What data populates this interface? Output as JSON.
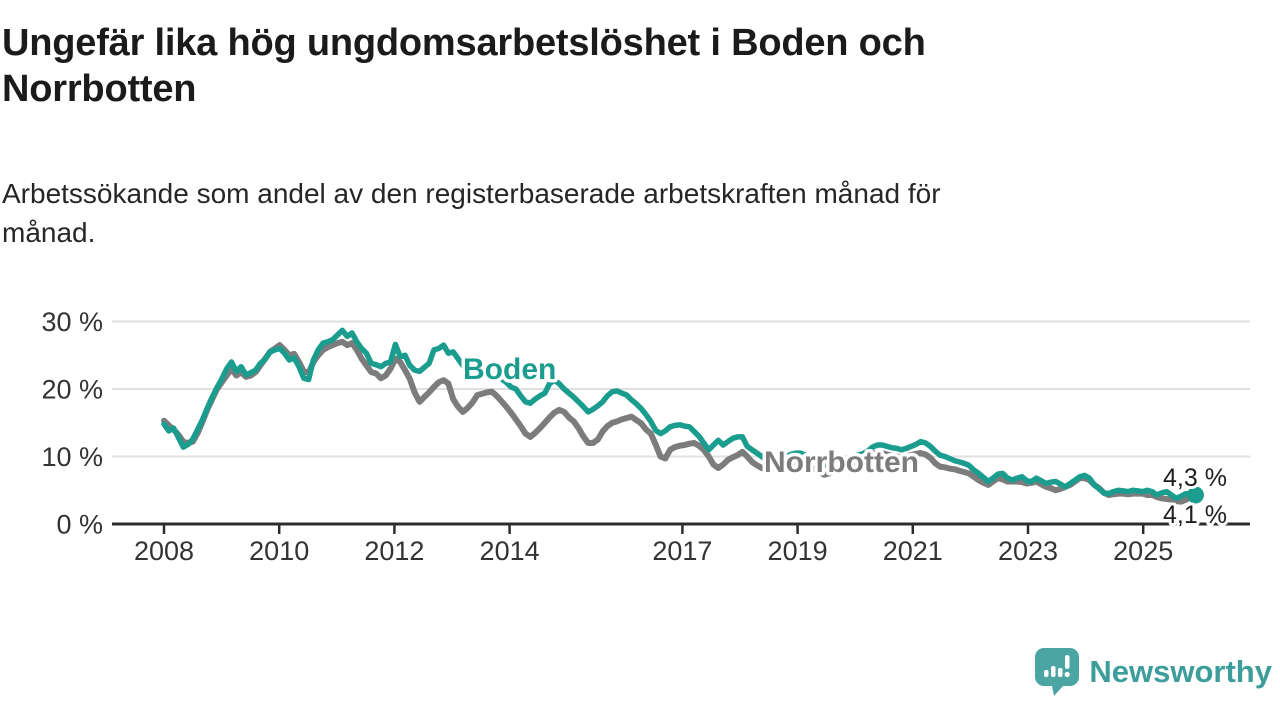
{
  "header": {
    "title": "Ungefär lika hög ungdomsarbetslöshet i Boden och\nNorrbotten",
    "subtitle": "Arbetssökande som andel av den registerbaserade arbetskraften månad för\nmånad."
  },
  "branding": {
    "name": "Newsworthy",
    "icon": "newsworthy-speech-bubble-chart-icon",
    "icon_color": "#4ba5a2",
    "text_color": "#3c9d9b"
  },
  "colors": {
    "boden": "#1a9d8f",
    "norrbotten": "#7c7c7c",
    "axis": "#2d2d2d",
    "grid": "#e0e0e0",
    "tick_text": "#333333",
    "value_text": "#1f1f1f"
  },
  "chart_data": {
    "type": "line",
    "title": "Ungefär lika hög ungdomsarbetslöshet i Boden och Norrbotten",
    "subtitle": "Arbetssökande som andel av den registerbaserade arbetskraften månad för månad.",
    "unit": "%",
    "frequency": "monthly",
    "x_start": "2008-01",
    "x_end": "2025-11",
    "x_tick_labels": [
      "2008",
      "2010",
      "2012",
      "2014",
      "2017",
      "2019",
      "2021",
      "2023",
      "2025"
    ],
    "y_tick_labels": [
      "30 %",
      "20 %",
      "10 %",
      "0 %"
    ],
    "y_tick_values": [
      30,
      20,
      10,
      0
    ],
    "ylim": [
      0,
      31
    ],
    "grid": "horizontal",
    "legend": "inline-labels",
    "series": [
      {
        "name": "Norrbotten",
        "color": "#7c7c7c",
        "end_label": "4,1 %",
        "last_value": 4.1,
        "end_dot": false,
        "values": [
          15.3,
          14.6,
          14.0,
          13.2,
          12.2,
          12.0,
          12.2,
          13.5,
          15.2,
          17.0,
          18.5,
          20.0,
          21.0,
          22.0,
          23.0,
          22.0,
          22.5,
          21.8,
          22.0,
          22.5,
          23.5,
          24.5,
          25.5,
          26.0,
          26.5,
          25.8,
          25.0,
          25.2,
          24.0,
          22.6,
          22.4,
          24.0,
          25.0,
          25.8,
          26.2,
          26.5,
          26.8,
          27.0,
          26.5,
          26.8,
          25.8,
          24.5,
          23.5,
          22.5,
          22.3,
          21.6,
          22.0,
          23.0,
          24.5,
          24.0,
          22.8,
          21.5,
          19.5,
          18.1,
          18.8,
          19.5,
          20.3,
          21.0,
          21.3,
          20.8,
          18.5,
          17.4,
          16.6,
          17.2,
          18.0,
          19.1,
          19.3,
          19.5,
          19.6,
          19.0,
          18.2,
          17.4,
          16.5,
          15.5,
          14.5,
          13.4,
          12.9,
          13.5,
          14.2,
          15.0,
          15.8,
          16.5,
          16.9,
          16.6,
          15.8,
          15.2,
          14.2,
          13.0,
          12.0,
          12.0,
          12.5,
          13.7,
          14.5,
          15.0,
          15.2,
          15.5,
          15.7,
          15.9,
          15.4,
          14.9,
          14.0,
          13.4,
          11.8,
          10.0,
          9.7,
          11.0,
          11.4,
          11.6,
          11.7,
          11.9,
          12.0,
          11.6,
          11.0,
          10.0,
          8.8,
          8.3,
          8.8,
          9.5,
          9.9,
          10.2,
          10.7,
          10.0,
          9.2,
          8.7,
          8.3,
          8.0,
          8.2,
          8.4,
          8.5,
          8.7,
          8.9,
          9.0,
          9.0,
          8.8,
          8.5,
          8.1,
          7.7,
          7.3,
          7.5,
          7.7,
          7.9,
          8.1,
          8.3,
          8.6,
          8.9,
          9.2,
          9.8,
          10.4,
          10.6,
          10.5,
          10.3,
          10.1,
          10.0,
          9.9,
          10.0,
          10.2,
          10.4,
          10.5,
          10.3,
          9.8,
          9.0,
          8.5,
          8.4,
          8.2,
          8.1,
          7.9,
          7.7,
          7.5,
          7.0,
          6.5,
          6.1,
          5.8,
          6.3,
          6.8,
          6.6,
          6.3,
          6.3,
          6.3,
          6.2,
          6.0,
          6.1,
          6.3,
          5.9,
          5.5,
          5.3,
          5.0,
          5.2,
          5.5,
          5.8,
          6.3,
          6.8,
          6.8,
          6.5,
          5.8,
          5.3,
          4.6,
          4.3,
          4.4,
          4.5,
          4.5,
          4.4,
          4.5,
          4.5,
          4.5,
          4.3,
          4.3,
          4.0,
          3.8,
          3.7,
          3.6,
          3.4,
          3.3,
          3.6,
          4.0,
          4.1
        ]
      },
      {
        "name": "Boden",
        "color": "#1a9d8f",
        "end_label": "4,3 %",
        "last_value": 4.3,
        "end_dot": true,
        "values": [
          14.8,
          13.8,
          14.2,
          12.8,
          11.4,
          11.8,
          12.6,
          14.0,
          15.5,
          17.2,
          18.8,
          20.2,
          21.5,
          23.0,
          24.0,
          22.6,
          23.3,
          22.1,
          22.4,
          22.8,
          23.8,
          24.4,
          25.5,
          25.8,
          26.0,
          25.3,
          24.3,
          24.6,
          23.3,
          21.6,
          21.4,
          24.3,
          25.8,
          26.8,
          27.0,
          27.3,
          28.0,
          28.7,
          27.8,
          28.3,
          27.0,
          26.0,
          25.3,
          23.8,
          23.6,
          23.3,
          23.8,
          24.0,
          26.6,
          24.8,
          25.0,
          23.5,
          22.8,
          22.6,
          23.2,
          23.8,
          25.8,
          26.0,
          26.5,
          25.3,
          25.5,
          24.5,
          23.5,
          22.5,
          21.8,
          21.5,
          21.8,
          22.0,
          22.3,
          22.0,
          21.5,
          21.0,
          20.3,
          20.0,
          19.0,
          18.1,
          17.9,
          18.5,
          19.0,
          19.4,
          20.8,
          21.3,
          20.8,
          20.0,
          19.4,
          18.8,
          18.1,
          17.4,
          16.6,
          17.0,
          17.5,
          18.1,
          19.0,
          19.6,
          19.7,
          19.4,
          19.1,
          18.4,
          17.8,
          17.1,
          16.2,
          15.2,
          13.9,
          13.4,
          13.8,
          14.4,
          14.6,
          14.7,
          14.5,
          14.4,
          13.7,
          13.0,
          12.0,
          11.0,
          11.7,
          12.4,
          11.7,
          12.2,
          12.7,
          12.9,
          12.9,
          11.5,
          11.0,
          10.5,
          10.0,
          9.5,
          9.8,
          10.0,
          9.8,
          10.0,
          10.3,
          10.5,
          10.5,
          10.2,
          9.8,
          9.4,
          9.0,
          8.7,
          8.9,
          9.2,
          9.4,
          9.6,
          9.8,
          10.0,
          10.2,
          10.4,
          10.8,
          11.4,
          11.7,
          11.7,
          11.5,
          11.3,
          11.2,
          11.0,
          11.2,
          11.5,
          11.8,
          12.2,
          12.0,
          11.5,
          10.8,
          10.2,
          10.0,
          9.7,
          9.4,
          9.2,
          9.0,
          8.7,
          8.0,
          7.5,
          6.9,
          6.3,
          6.8,
          7.4,
          7.5,
          6.8,
          6.5,
          6.8,
          7.0,
          6.4,
          6.3,
          6.8,
          6.4,
          6.0,
          6.2,
          6.3,
          5.9,
          5.5,
          6.0,
          6.5,
          7.0,
          7.2,
          6.8,
          5.8,
          5.2,
          4.6,
          4.5,
          4.8,
          5.0,
          4.9,
          4.8,
          5.0,
          4.9,
          4.8,
          5.0,
          4.8,
          4.3,
          4.6,
          4.8,
          4.3,
          3.8,
          4.1,
          4.5,
          4.4,
          4.3
        ]
      }
    ]
  }
}
